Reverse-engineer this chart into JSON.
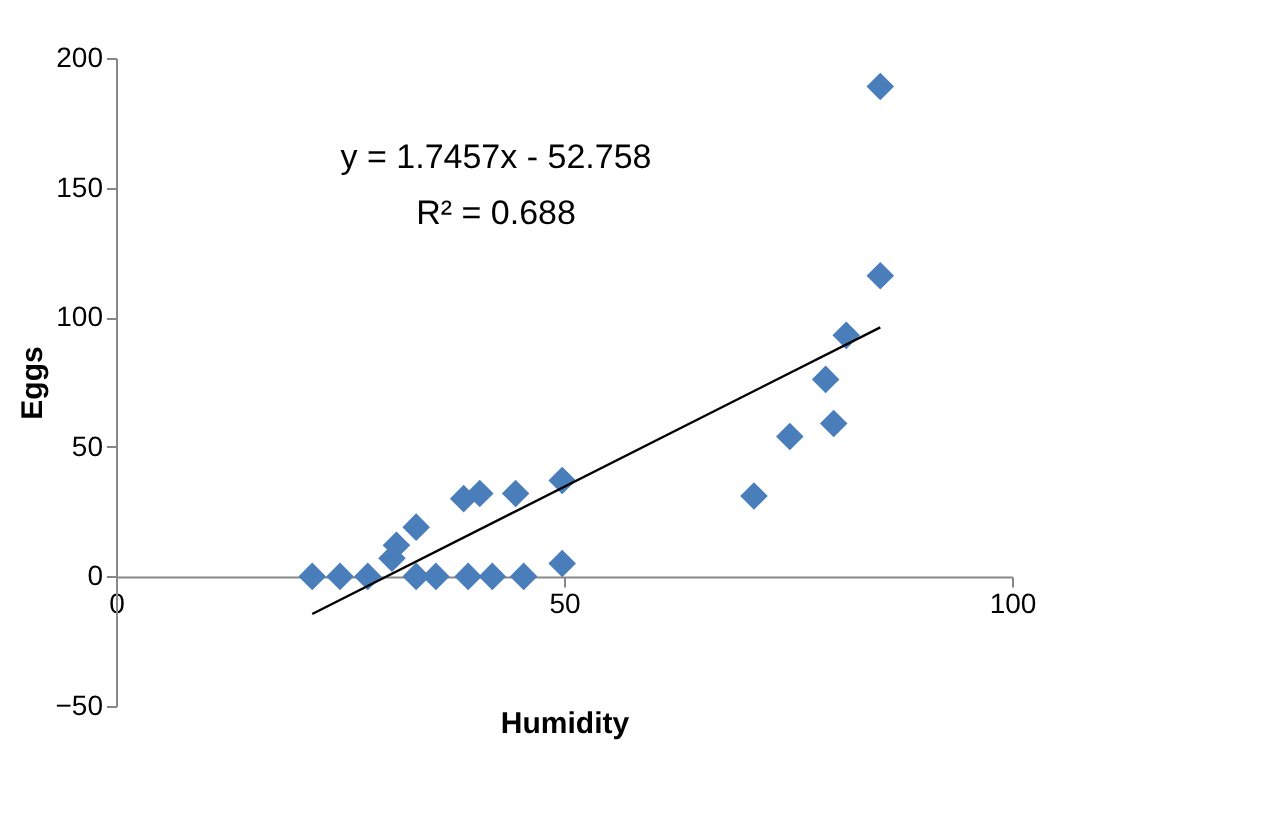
{
  "chart_data": {
    "type": "scatter",
    "xlabel": "Humidity",
    "ylabel": "Eggs",
    "xlim": [
      0,
      100
    ],
    "xticks": [
      0,
      50,
      100
    ],
    "ylim": [
      -50,
      200
    ],
    "yticks": [
      -50,
      0,
      50,
      100,
      150,
      200
    ],
    "grid": false,
    "annotations": [
      "y = 1.7457x - 52.758",
      "R² = 0.688"
    ],
    "series": [
      {
        "color": "#4a7ebb",
        "marker": "diamond",
        "x": [
          21.9,
          25,
          28.1,
          30.8,
          31.3,
          33.5,
          33.5,
          35.7,
          38.8,
          40.6,
          39.3,
          42,
          44.6,
          45.5,
          49.8,
          49.8,
          71.2,
          75.2,
          79.2,
          80.1,
          81.5,
          85.3,
          85.3
        ],
        "values": [
          0,
          0,
          0,
          7,
          12,
          19,
          0,
          0,
          30,
          32,
          0,
          0,
          32,
          0,
          37,
          5,
          31,
          54,
          76,
          59,
          93,
          116,
          189
        ]
      },
      {
        "type": "line",
        "color": "#000000",
        "line_style": "solid",
        "x": [
          21.9,
          85.3
        ],
        "values": [
          -14.5,
          96.1
        ]
      }
    ]
  }
}
